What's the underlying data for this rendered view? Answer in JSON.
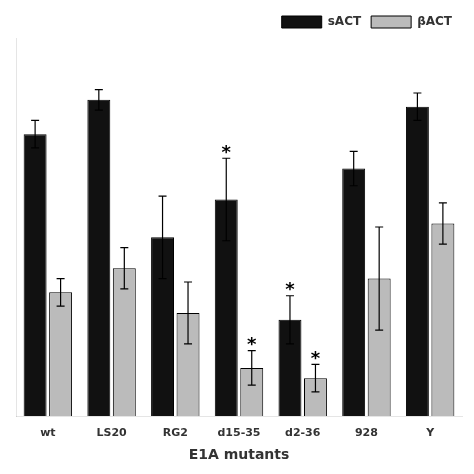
{
  "chart_data": {
    "type": "bar",
    "categories": [
      "wt",
      "LS20",
      "RG2",
      "d15-35",
      "d2-36",
      "928",
      "Y"
    ],
    "series": [
      {
        "name": "sACT",
        "color": "#111111",
        "values": [
          0.82,
          0.92,
          0.52,
          0.63,
          0.28,
          0.72,
          0.9
        ],
        "errors": [
          0.04,
          0.03,
          0.12,
          0.12,
          0.07,
          0.05,
          0.04
        ]
      },
      {
        "name": "βACT",
        "color": "#bbbbbb",
        "values": [
          0.36,
          0.43,
          0.3,
          0.14,
          0.11,
          0.4,
          0.56
        ],
        "errors": [
          0.04,
          0.06,
          0.09,
          0.05,
          0.04,
          0.15,
          0.06
        ]
      }
    ],
    "xlabel": "E1A mutants",
    "ylim": [
      0,
      1.1
    ],
    "tick_labels": "x",
    "grid": false,
    "legend": "upper right",
    "annotations": [
      {
        "text": "*",
        "series": "sACT",
        "category": "d15-35"
      },
      {
        "text": "*",
        "series": "sACT",
        "category": "d2-36"
      },
      {
        "text": "*",
        "series": "βACT",
        "category": "d15-35"
      },
      {
        "text": "*",
        "series": "βACT",
        "category": "d2-36"
      }
    ]
  }
}
